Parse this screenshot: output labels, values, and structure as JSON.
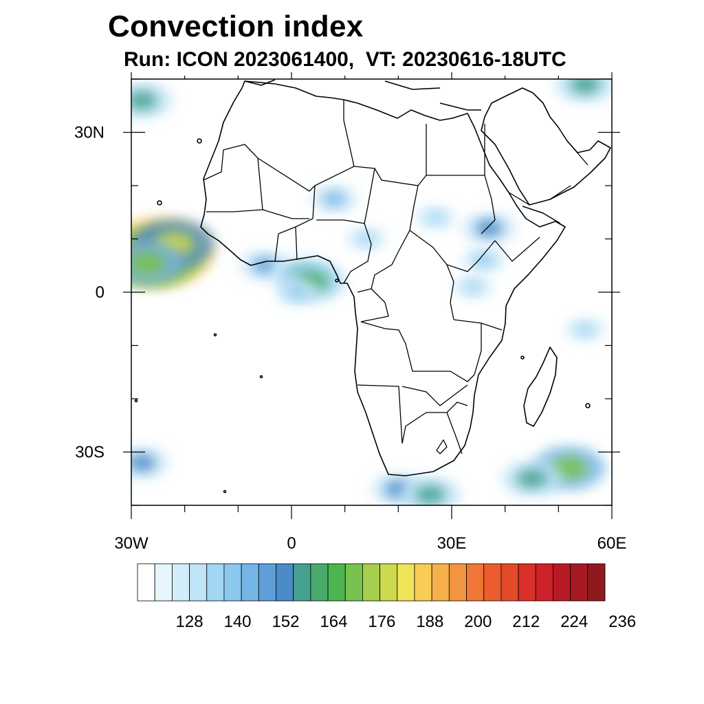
{
  "title": "Convection index",
  "subtitle": "Run: ICON 2023061400,  VT: 20230616-18UTC",
  "map": {
    "lon_range": [
      -30,
      60
    ],
    "lat_range": [
      -40,
      40
    ],
    "lat_ticks": [
      {
        "value": 30,
        "label": "30N"
      },
      {
        "value": 0,
        "label": "0"
      },
      {
        "value": -30,
        "label": "30S"
      }
    ],
    "lon_ticks": [
      {
        "value": -30,
        "label": "30W"
      },
      {
        "value": 0,
        "label": "0"
      },
      {
        "value": 30,
        "label": "30E"
      },
      {
        "value": 60,
        "label": "60E"
      }
    ]
  },
  "colorbar": {
    "colors": [
      "#ffffff",
      "#e8f5fc",
      "#d3ecf9",
      "#bfe3f7",
      "#a3d6f3",
      "#8ac8ee",
      "#74b5e5",
      "#5f9fd9",
      "#4b8bc8",
      "#45a090",
      "#48ab6c",
      "#4cb550",
      "#77c24f",
      "#a6cf4f",
      "#cdd94f",
      "#efe357",
      "#f8cd57",
      "#f6b14d",
      "#f39440",
      "#ef7736",
      "#eb5c2e",
      "#e34a2a",
      "#d93029",
      "#cc2128",
      "#b81a25",
      "#a51922",
      "#8f1a1e"
    ],
    "labels": [
      {
        "index": 3,
        "text": "128"
      },
      {
        "index": 6,
        "text": "140"
      },
      {
        "index": 9,
        "text": "152"
      },
      {
        "index": 12,
        "text": "164"
      },
      {
        "index": 15,
        "text": "176"
      },
      {
        "index": 18,
        "text": "188"
      },
      {
        "index": 21,
        "text": "200"
      },
      {
        "index": 24,
        "text": "212"
      },
      {
        "index": 27,
        "text": "224"
      },
      {
        "index": 30,
        "text": "236"
      }
    ]
  },
  "field_patches": [
    {
      "lon": -25,
      "lat": 7.5,
      "level": 22
    },
    {
      "lon": -26,
      "lat": 6.5,
      "level": 18
    },
    {
      "lon": -22,
      "lat": 9,
      "level": 14
    },
    {
      "lon": -27,
      "lat": 5.5,
      "level": 12
    },
    {
      "lon": -5,
      "lat": 5,
      "level": 7
    },
    {
      "lon": 2,
      "lat": 3,
      "level": 9
    },
    {
      "lon": 4,
      "lat": 2,
      "level": 10
    },
    {
      "lon": 1,
      "lat": 0,
      "level": 5
    },
    {
      "lon": 37,
      "lat": 12,
      "level": 8
    },
    {
      "lon": 27,
      "lat": 14,
      "level": 4
    },
    {
      "lon": 36,
      "lat": 6,
      "level": 5
    },
    {
      "lon": 34,
      "lat": 1,
      "level": 4
    },
    {
      "lon": 8,
      "lat": 17.5,
      "level": 6
    },
    {
      "lon": 14,
      "lat": 10,
      "level": 4
    },
    {
      "lon": -28,
      "lat": 36,
      "level": 9
    },
    {
      "lon": 55,
      "lat": 39,
      "level": 9
    },
    {
      "lon": 52,
      "lat": -33,
      "level": 12
    },
    {
      "lon": 45,
      "lat": -35,
      "level": 9
    },
    {
      "lon": 20,
      "lat": -37,
      "level": 8
    },
    {
      "lon": 26,
      "lat": -38,
      "level": 9
    },
    {
      "lon": -28,
      "lat": -32,
      "level": 8
    },
    {
      "lon": 55,
      "lat": -7,
      "level": 4
    }
  ]
}
